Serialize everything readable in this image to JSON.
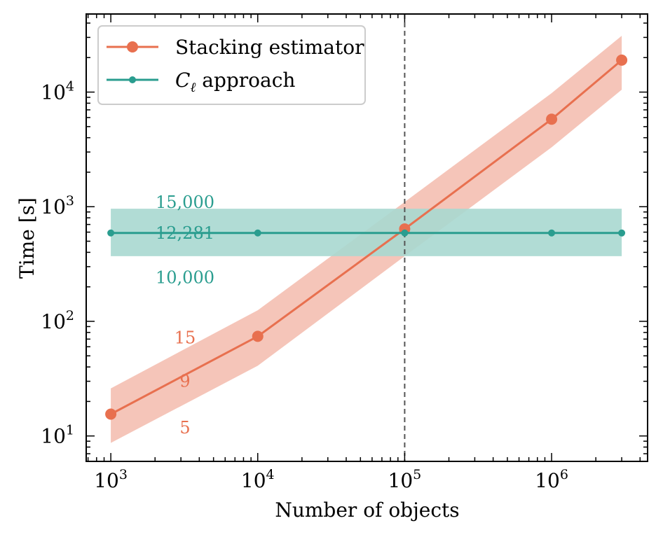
{
  "chart_data": {
    "type": "line",
    "title": "",
    "xlabel": "Number of objects",
    "ylabel": "Time [s]",
    "xscale": "log",
    "yscale": "log",
    "xlim": [
      680,
      4500000
    ],
    "ylim": [
      6,
      48000
    ],
    "grid": false,
    "legend_position": "top-left",
    "x_ticks": [
      {
        "value": 1000,
        "base": "10",
        "exp": "3"
      },
      {
        "value": 10000,
        "base": "10",
        "exp": "4"
      },
      {
        "value": 100000,
        "base": "10",
        "exp": "5"
      },
      {
        "value": 1000000,
        "base": "10",
        "exp": "6"
      }
    ],
    "y_ticks": [
      {
        "value": 10,
        "base": "10",
        "exp": "1"
      },
      {
        "value": 100,
        "base": "10",
        "exp": "2"
      },
      {
        "value": 1000,
        "base": "10",
        "exp": "3"
      },
      {
        "value": 10000,
        "base": "10",
        "exp": "4"
      }
    ],
    "vline": {
      "x": 100000,
      "style": "dashed",
      "color": "#555555"
    },
    "series": [
      {
        "name": "Stacking estimator",
        "color": "#e8704f",
        "band_color": "#f2b1a2",
        "marker": "large-circle",
        "x": [
          1000,
          10000,
          100000,
          1000000,
          3000000
        ],
        "y": [
          15.5,
          74,
          640,
          5800,
          19000
        ],
        "y_low": [
          8.7,
          41,
          370,
          3300,
          10500
        ],
        "y_high": [
          26,
          125,
          1100,
          9800,
          31000
        ]
      },
      {
        "name": "C_ℓ approach",
        "color": "#2a9d8f",
        "band_color": "#a8d8d0",
        "marker": "small-circle",
        "x": [
          1000,
          10000,
          100000,
          1000000,
          3000000
        ],
        "y": [
          590,
          590,
          590,
          590,
          590
        ],
        "y_low": [
          370,
          370,
          370,
          370,
          370
        ],
        "y_high": [
          960,
          960,
          960,
          960,
          960
        ]
      }
    ],
    "annotations": [
      {
        "text": "15,000",
        "x": 3200,
        "y": 1090,
        "color": "#2a9d8f"
      },
      {
        "text": "12,281",
        "x": 3200,
        "y": 590,
        "color": "#2a9d8f"
      },
      {
        "text": "10,000",
        "x": 3200,
        "y": 240,
        "color": "#2a9d8f"
      },
      {
        "text": "15",
        "x": 3200,
        "y": 72,
        "color": "#e8704f"
      },
      {
        "text": "9",
        "x": 3200,
        "y": 30,
        "color": "#e8704f"
      },
      {
        "text": "5",
        "x": 3200,
        "y": 11.8,
        "color": "#e8704f"
      }
    ],
    "legend": [
      {
        "label_main": "Stacking estimator",
        "label_sub": ""
      },
      {
        "label_main": "C",
        "label_sub": "ℓ",
        "label_rest": " approach"
      }
    ]
  }
}
